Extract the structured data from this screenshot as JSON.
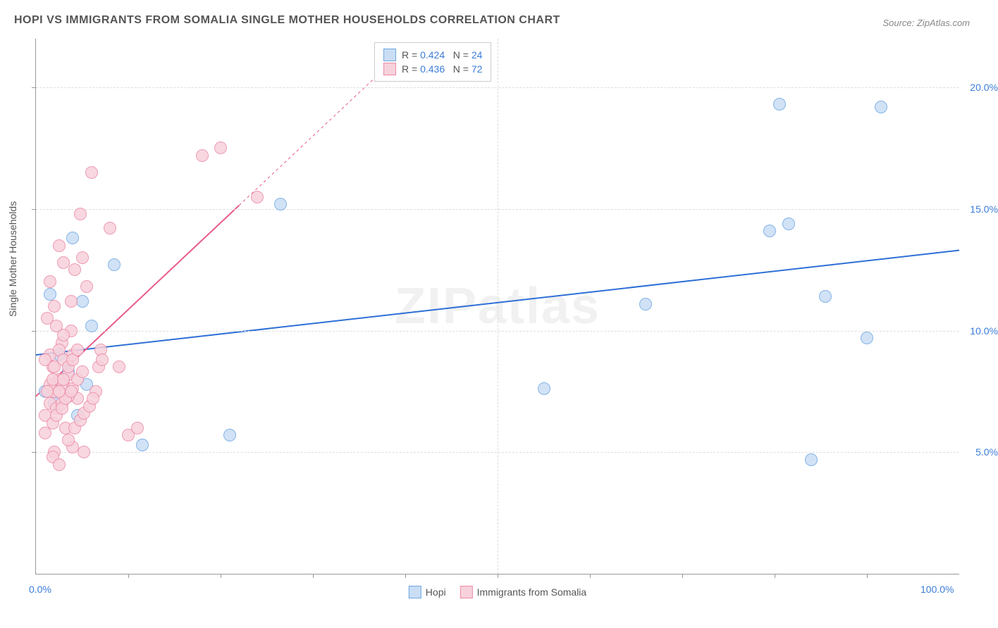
{
  "title": "HOPI VS IMMIGRANTS FROM SOMALIA SINGLE MOTHER HOUSEHOLDS CORRELATION CHART",
  "source": "Source: ZipAtlas.com",
  "ylabel": "Single Mother Households",
  "watermark": "ZIPatlas",
  "chart": {
    "type": "scatter",
    "xlim": [
      0,
      100
    ],
    "ylim": [
      0,
      22
    ],
    "yticks": [
      {
        "value": 5.0,
        "label": "5.0%"
      },
      {
        "value": 10.0,
        "label": "10.0%"
      },
      {
        "value": 15.0,
        "label": "15.0%"
      },
      {
        "value": 20.0,
        "label": "20.0%"
      }
    ],
    "xticks_minor": [
      10,
      20,
      30,
      40,
      50,
      60,
      70,
      80,
      90
    ],
    "xticks_labels": [
      {
        "value": 0,
        "label": "0.0%"
      },
      {
        "value": 100,
        "label": "100.0%"
      }
    ],
    "background_color": "#ffffff",
    "grid_color": "#dddddd",
    "series": [
      {
        "name": "Hopi",
        "color_fill": "#c9def5",
        "color_stroke": "#6ea6e2",
        "marker_radius": 8,
        "R": "0.424",
        "N": "24",
        "trend": {
          "x1": 0,
          "y1": 9.0,
          "x2": 100,
          "y2": 13.3,
          "color": "#2e6fd6",
          "width": 2
        },
        "points": [
          [
            1.0,
            7.5
          ],
          [
            1.5,
            11.5
          ],
          [
            4.0,
            13.8
          ],
          [
            5.0,
            11.2
          ],
          [
            6.0,
            10.2
          ],
          [
            8.5,
            12.7
          ],
          [
            11.5,
            5.3
          ],
          [
            21.0,
            5.7
          ],
          [
            26.5,
            15.2
          ],
          [
            55.0,
            7.6
          ],
          [
            66.0,
            11.1
          ],
          [
            81.5,
            14.4
          ],
          [
            79.5,
            14.1
          ],
          [
            80.5,
            19.3
          ],
          [
            91.5,
            19.2
          ],
          [
            85.5,
            11.4
          ],
          [
            90.0,
            9.7
          ],
          [
            84.0,
            4.7
          ],
          [
            3.0,
            8.0
          ],
          [
            2.0,
            7.0
          ],
          [
            4.5,
            6.5
          ],
          [
            2.5,
            9.0
          ],
          [
            3.5,
            8.3
          ],
          [
            5.5,
            7.8
          ]
        ]
      },
      {
        "name": "Immigrants from Somalia",
        "color_fill": "#f7d1db",
        "color_stroke": "#ec8aa6",
        "marker_radius": 8,
        "R": "0.436",
        "N": "72",
        "trend": {
          "x1": 0,
          "y1": 7.3,
          "x2": 30,
          "y2": 18.0,
          "color": "#e95c8a",
          "width": 2,
          "dash_after": 22
        },
        "points": [
          [
            1.0,
            6.5
          ],
          [
            1.5,
            7.0
          ],
          [
            2.0,
            7.5
          ],
          [
            2.5,
            8.0
          ],
          [
            1.8,
            8.5
          ],
          [
            3.0,
            7.8
          ],
          [
            3.5,
            8.2
          ],
          [
            2.2,
            6.8
          ],
          [
            4.0,
            9.0
          ],
          [
            4.5,
            7.2
          ],
          [
            2.8,
            9.5
          ],
          [
            3.2,
            6.0
          ],
          [
            1.2,
            10.5
          ],
          [
            2.0,
            11.0
          ],
          [
            3.8,
            10.0
          ],
          [
            4.2,
            12.5
          ],
          [
            5.0,
            13.0
          ],
          [
            1.5,
            12.0
          ],
          [
            2.5,
            13.5
          ],
          [
            3.0,
            12.8
          ],
          [
            6.0,
            16.5
          ],
          [
            4.8,
            14.8
          ],
          [
            5.5,
            11.8
          ],
          [
            8.0,
            14.2
          ],
          [
            9.0,
            8.5
          ],
          [
            10.0,
            5.7
          ],
          [
            11.0,
            6.0
          ],
          [
            7.0,
            9.2
          ],
          [
            6.5,
            7.5
          ],
          [
            5.2,
            5.0
          ],
          [
            4.0,
            5.2
          ],
          [
            3.5,
            5.5
          ],
          [
            2.0,
            5.0
          ],
          [
            1.0,
            5.8
          ],
          [
            1.8,
            4.8
          ],
          [
            2.5,
            4.5
          ],
          [
            3.0,
            9.8
          ],
          [
            3.8,
            11.2
          ],
          [
            2.2,
            10.2
          ],
          [
            1.5,
            9.0
          ],
          [
            2.8,
            7.0
          ],
          [
            3.5,
            7.3
          ],
          [
            4.0,
            7.6
          ],
          [
            4.5,
            8.0
          ],
          [
            5.0,
            8.3
          ],
          [
            1.0,
            8.8
          ],
          [
            1.5,
            7.8
          ],
          [
            2.0,
            8.5
          ],
          [
            2.5,
            9.2
          ],
          [
            3.0,
            8.8
          ],
          [
            18.0,
            17.2
          ],
          [
            20.0,
            17.5
          ],
          [
            24.0,
            15.5
          ],
          [
            1.8,
            6.2
          ],
          [
            2.2,
            6.5
          ],
          [
            2.8,
            6.8
          ],
          [
            3.2,
            7.2
          ],
          [
            3.8,
            7.5
          ],
          [
            4.2,
            6.0
          ],
          [
            4.8,
            6.3
          ],
          [
            5.2,
            6.6
          ],
          [
            5.8,
            6.9
          ],
          [
            6.2,
            7.2
          ],
          [
            6.8,
            8.5
          ],
          [
            7.2,
            8.8
          ],
          [
            1.2,
            7.5
          ],
          [
            1.8,
            8.0
          ],
          [
            2.5,
            7.5
          ],
          [
            3.0,
            8.0
          ],
          [
            3.5,
            8.5
          ],
          [
            4.0,
            8.8
          ],
          [
            4.5,
            9.2
          ]
        ]
      }
    ]
  },
  "bottom_legend": [
    {
      "label": "Hopi",
      "fill": "#c9def5",
      "stroke": "#6ea6e2"
    },
    {
      "label": "Immigrants from Somalia",
      "fill": "#f7d1db",
      "stroke": "#ec8aa6"
    }
  ]
}
